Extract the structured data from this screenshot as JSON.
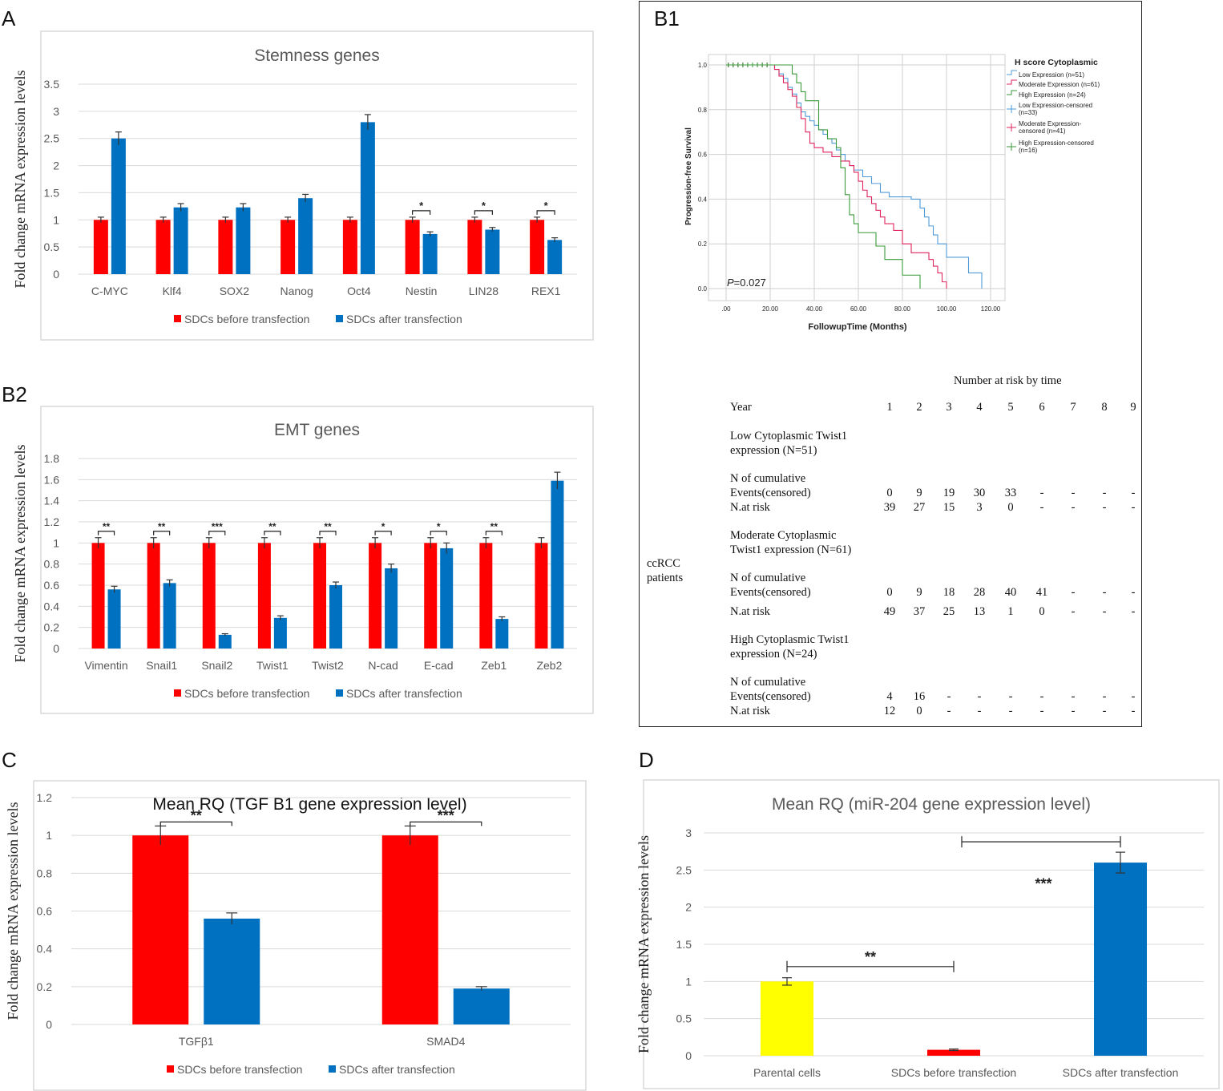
{
  "panels": {
    "a": "A",
    "b1": "B1",
    "b2": "B2",
    "c": "C",
    "d": "D"
  },
  "colors": {
    "red": "#FF0000",
    "blue": "#0070C0",
    "yellow": "#FFFF00"
  },
  "chart_data": [
    {
      "id": "A",
      "type": "bar",
      "title": "Stemness genes",
      "ylabel": "Fold change mRNA expression levels",
      "ylim": [
        0,
        3.5
      ],
      "yticks": [
        "0",
        "0.5",
        "1",
        "1.5",
        "2",
        "2.5",
        "3",
        "3.5"
      ],
      "categories": [
        "C-MYC",
        "Klf4",
        "SOX2",
        "Nanog",
        "Oct4",
        "Nestin",
        "LIN28",
        "REX1"
      ],
      "series": [
        {
          "name": "SDCs before transfection",
          "values": [
            1,
            1,
            1,
            1,
            1,
            1,
            1,
            1
          ],
          "errors": [
            0.05,
            0.05,
            0.05,
            0.05,
            0.05,
            0.05,
            0.05,
            0.05
          ]
        },
        {
          "name": "SDCs after transfection",
          "values": [
            2.5,
            1.23,
            1.23,
            1.4,
            2.8,
            0.74,
            0.82,
            0.63
          ],
          "errors": [
            0.12,
            0.07,
            0.07,
            0.07,
            0.14,
            0.04,
            0.04,
            0.04
          ]
        }
      ],
      "significance": [
        "",
        "",
        "",
        "",
        "",
        "*",
        "*",
        "*"
      ]
    },
    {
      "id": "B2",
      "type": "bar",
      "title": "EMT genes",
      "ylabel": "Fold change mRNA expression levels",
      "ylim": [
        0,
        1.8
      ],
      "yticks": [
        "0",
        "0.2",
        "0.4",
        "0.6",
        "0.8",
        "1",
        "1.2",
        "1.4",
        "1.6",
        "1.8"
      ],
      "categories": [
        "Vimentin",
        "Snail1",
        "Snail2",
        "Twist1",
        "Twist2",
        "N-cad",
        "E-cad",
        "Zeb1",
        "Zeb2"
      ],
      "series": [
        {
          "name": "SDCs before transfection",
          "values": [
            1,
            1,
            1,
            1,
            1,
            1,
            1,
            1,
            1
          ],
          "errors": [
            0.05,
            0.05,
            0.05,
            0.05,
            0.05,
            0.05,
            0.05,
            0.05,
            0.05
          ]
        },
        {
          "name": "SDCs after transfection",
          "values": [
            0.56,
            0.62,
            0.13,
            0.29,
            0.6,
            0.76,
            0.95,
            0.28,
            1.59
          ],
          "errors": [
            0.03,
            0.03,
            0.01,
            0.02,
            0.03,
            0.04,
            0.05,
            0.02,
            0.08
          ]
        }
      ],
      "significance": [
        "**",
        "**",
        "***",
        "**",
        "**",
        "*",
        "*",
        "**",
        ""
      ]
    },
    {
      "id": "C",
      "type": "bar",
      "title": "Mean RQ (TGF B1 gene expression level)",
      "ylabel": "Fold change mRNA expression levels",
      "ylim": [
        0,
        1.2
      ],
      "yticks": [
        "0",
        "0.2",
        "0.4",
        "0.6",
        "0.8",
        "1",
        "1.2"
      ],
      "categories": [
        "TGFβ1",
        "SMAD4"
      ],
      "series": [
        {
          "name": "SDCs before transfection",
          "values": [
            1,
            1
          ],
          "errors": [
            0.05,
            0.05
          ]
        },
        {
          "name": "SDCs after transfection",
          "values": [
            0.56,
            0.19
          ],
          "errors": [
            0.03,
            0.01
          ]
        }
      ],
      "significance": [
        "**",
        "***"
      ]
    },
    {
      "id": "D",
      "type": "bar",
      "title": "Mean RQ (miR-204 gene expression level)",
      "ylabel": "Fold change mRNA expression levels",
      "ylim": [
        0,
        3
      ],
      "yticks": [
        "0",
        "0.5",
        "1",
        "1.5",
        "2",
        "2.5",
        "3"
      ],
      "categories": [
        "Parental cells",
        "SDCs before transfection",
        "SDCs after transfection"
      ],
      "values": [
        1,
        0.08,
        2.6
      ],
      "errors": [
        0.05,
        0.01,
        0.14
      ],
      "bar_colors": [
        "#FFFF00",
        "#FF0000",
        "#0070C0"
      ],
      "significance": [
        "**",
        "***"
      ]
    },
    {
      "id": "B1",
      "type": "line",
      "title": "H score Cytoplasmic",
      "xlabel": "FollowupTime (Months)",
      "ylabel": "Progression-free Survival",
      "xlim": [
        0,
        120
      ],
      "ylim": [
        0,
        1
      ],
      "xticks": [
        ".00",
        "20.00",
        "40.00",
        "60.00",
        "80.00",
        "100.00",
        "120.00"
      ],
      "yticks": [
        "0.0",
        "0.2",
        "0.4",
        "0.6",
        "0.8",
        "1.0"
      ],
      "pvalue_label": "P",
      "pvalue": "=0.027",
      "legend": [
        "Low Expression (n=51)",
        "Moderate Expression (n=61)",
        "High Expression (n=24)",
        "Low Expression-censored (n=33)",
        "Moderate Expression-censored (n=41)",
        "High Expression-censored (n=16)"
      ],
      "series": [
        {
          "name": "Low Expression",
          "color": "#4F9BD9",
          "x": [
            0,
            20,
            22,
            24,
            26,
            28,
            30,
            32,
            34,
            36,
            38,
            40,
            42,
            44,
            46,
            48,
            50,
            52,
            54,
            56,
            58,
            62,
            66,
            70,
            74,
            78,
            84,
            88,
            90,
            92,
            94,
            96,
            100,
            106,
            110,
            116
          ],
          "y": [
            1,
            1,
            0.98,
            0.96,
            0.94,
            0.9,
            0.87,
            0.83,
            0.79,
            0.77,
            0.75,
            0.73,
            0.71,
            0.69,
            0.67,
            0.65,
            0.62,
            0.6,
            0.57,
            0.55,
            0.53,
            0.5,
            0.47,
            0.43,
            0.41,
            0.41,
            0.4,
            0.36,
            0.32,
            0.28,
            0.24,
            0.2,
            0.14,
            0.14,
            0.07,
            0
          ]
        },
        {
          "name": "Moderate Expression",
          "color": "#E0245E",
          "x": [
            0,
            20,
            22,
            24,
            26,
            28,
            30,
            32,
            34,
            36,
            38,
            40,
            44,
            48,
            52,
            56,
            58,
            60,
            62,
            64,
            66,
            68,
            70,
            72,
            76,
            80,
            84,
            88,
            92,
            94,
            96,
            98,
            100
          ],
          "y": [
            1,
            1,
            0.98,
            0.95,
            0.92,
            0.89,
            0.86,
            0.81,
            0.76,
            0.7,
            0.65,
            0.63,
            0.61,
            0.59,
            0.57,
            0.55,
            0.52,
            0.48,
            0.44,
            0.41,
            0.38,
            0.35,
            0.32,
            0.29,
            0.26,
            0.2,
            0.16,
            0.16,
            0.13,
            0.1,
            0.07,
            0.03,
            0
          ]
        },
        {
          "name": "High Expression",
          "color": "#3A9A3A",
          "x": [
            0,
            28,
            30,
            32,
            34,
            36,
            38,
            42,
            46,
            50,
            52,
            54,
            56,
            58,
            60,
            64,
            68,
            72,
            76,
            80,
            84,
            88
          ],
          "y": [
            1,
            1,
            0.96,
            0.92,
            0.88,
            0.84,
            0.84,
            0.71,
            0.67,
            0.63,
            0.54,
            0.42,
            0.33,
            0.29,
            0.25,
            0.25,
            0.19,
            0.13,
            0.13,
            0.06,
            0.06,
            0
          ]
        }
      ]
    }
  ],
  "risk_table": {
    "header": "Number at risk by time",
    "row_label": "Year",
    "years": [
      "1",
      "2",
      "3",
      "4",
      "5",
      "6",
      "7",
      "8",
      "9"
    ],
    "cohort_label_1": "ccRCC",
    "cohort_label_2": "patients",
    "groups": [
      {
        "title_1": "Low Cytoplasmic Twist1",
        "title_2": "expression (N=51)",
        "events_label_1": "N of cumulative",
        "events_label_2": "Events(censored)",
        "events": [
          "0",
          "9",
          "19",
          "30",
          "33",
          "-",
          "-",
          "-",
          "-"
        ],
        "risk_label": "N.at risk",
        "risk": [
          "39",
          "27",
          "15",
          "3",
          "0",
          "-",
          "-",
          "-",
          "-"
        ]
      },
      {
        "title_1": "Moderate Cytoplasmic",
        "title_2": "Twist1 expression (N=61)",
        "events_label_1": "N of cumulative",
        "events_label_2": "Events(censored)",
        "events": [
          "0",
          "9",
          "18",
          "28",
          "40",
          "41",
          "-",
          "-",
          "-"
        ],
        "risk_label": "N.at risk",
        "risk": [
          "49",
          "37",
          "25",
          "13",
          "1",
          "0",
          "-",
          "-",
          "-"
        ]
      },
      {
        "title_1": "High Cytoplasmic Twist1",
        "title_2": "expression (N=24)",
        "events_label_1": "N of cumulative",
        "events_label_2": "Events(censored)",
        "events": [
          "4",
          "16",
          "-",
          "-",
          "-",
          "-",
          "-",
          "-",
          "-"
        ],
        "risk_label": "N.at risk",
        "risk": [
          "12",
          "0",
          "-",
          "-",
          "-",
          "-",
          "-",
          "-",
          "-"
        ]
      }
    ]
  }
}
